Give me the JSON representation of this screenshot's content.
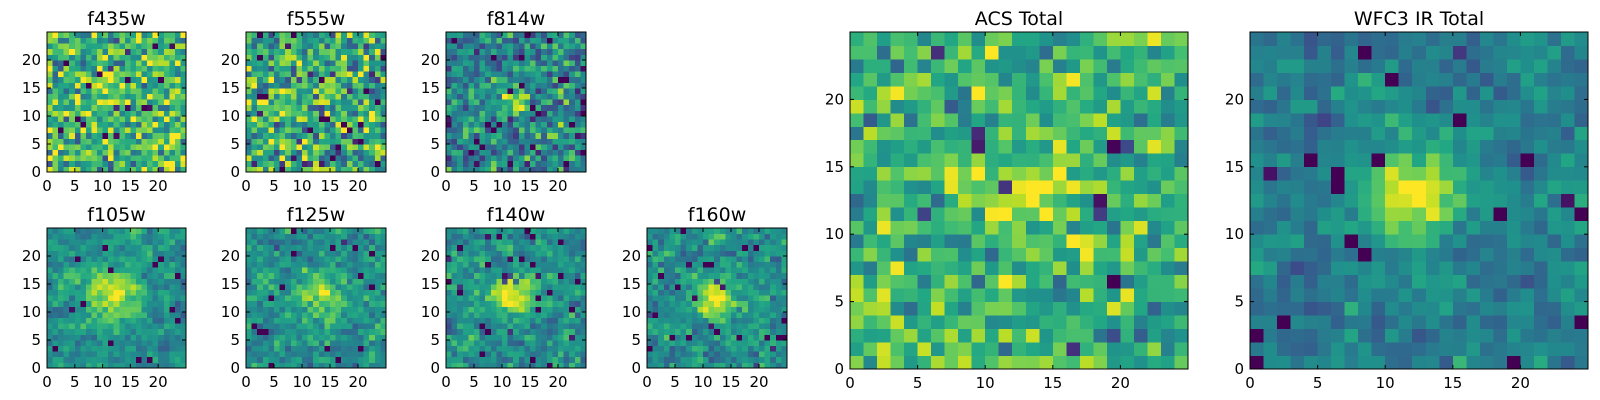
{
  "colormap": "viridis",
  "chart_data": [
    {
      "type": "heatmap",
      "title": "f435w",
      "xticks": [
        "0",
        "5",
        "10",
        "15",
        "20"
      ],
      "yticks": [
        "0",
        "5",
        "10",
        "15",
        "20"
      ],
      "xlim": [
        0,
        25
      ],
      "ylim": [
        0,
        25
      ],
      "grid": false,
      "legend": "none"
    },
    {
      "type": "heatmap",
      "title": "f555w",
      "xticks": [
        "0",
        "5",
        "10",
        "15",
        "20"
      ],
      "yticks": [
        "0",
        "5",
        "10",
        "15",
        "20"
      ],
      "xlim": [
        0,
        25
      ],
      "ylim": [
        0,
        25
      ],
      "grid": false,
      "legend": "none"
    },
    {
      "type": "heatmap",
      "title": "f814w",
      "xticks": [
        "0",
        "5",
        "10",
        "15",
        "20"
      ],
      "yticks": [
        "0",
        "5",
        "10",
        "15",
        "20"
      ],
      "xlim": [
        0,
        25
      ],
      "ylim": [
        0,
        25
      ],
      "grid": false,
      "legend": "none"
    },
    {
      "type": "heatmap",
      "title": "f105w",
      "xticks": [
        "0",
        "5",
        "10",
        "15",
        "20"
      ],
      "yticks": [
        "0",
        "5",
        "10",
        "15",
        "20"
      ],
      "xlim": [
        0,
        25
      ],
      "ylim": [
        0,
        25
      ],
      "grid": false,
      "legend": "none"
    },
    {
      "type": "heatmap",
      "title": "f125w",
      "xticks": [
        "0",
        "5",
        "10",
        "15",
        "20"
      ],
      "yticks": [
        "0",
        "5",
        "10",
        "15",
        "20"
      ],
      "xlim": [
        0,
        25
      ],
      "ylim": [
        0,
        25
      ],
      "grid": false,
      "legend": "none"
    },
    {
      "type": "heatmap",
      "title": "f140w",
      "xticks": [
        "0",
        "5",
        "10",
        "15",
        "20"
      ],
      "yticks": [
        "0",
        "5",
        "10",
        "15",
        "20"
      ],
      "xlim": [
        0,
        25
      ],
      "ylim": [
        0,
        25
      ],
      "grid": false,
      "legend": "none"
    },
    {
      "type": "heatmap",
      "title": "f160w",
      "xticks": [
        "0",
        "5",
        "10",
        "15",
        "20"
      ],
      "yticks": [
        "0",
        "5",
        "10",
        "15",
        "20"
      ],
      "xlim": [
        0,
        25
      ],
      "ylim": [
        0,
        25
      ],
      "grid": false,
      "legend": "none"
    },
    {
      "type": "heatmap",
      "title": "ACS Total",
      "xticks": [
        "0",
        "5",
        "10",
        "15",
        "20"
      ],
      "yticks": [
        "0",
        "5",
        "10",
        "15",
        "20"
      ],
      "xlim": [
        0,
        25
      ],
      "ylim": [
        0,
        25
      ],
      "grid": false,
      "legend": "none"
    },
    {
      "type": "heatmap",
      "title": "WFC3 IR Total",
      "xticks": [
        "0",
        "5",
        "10",
        "15",
        "20"
      ],
      "yticks": [
        "0",
        "5",
        "10",
        "15",
        "20"
      ],
      "xlim": [
        0,
        25
      ],
      "ylim": [
        0,
        25
      ],
      "grid": false,
      "legend": "none"
    }
  ]
}
